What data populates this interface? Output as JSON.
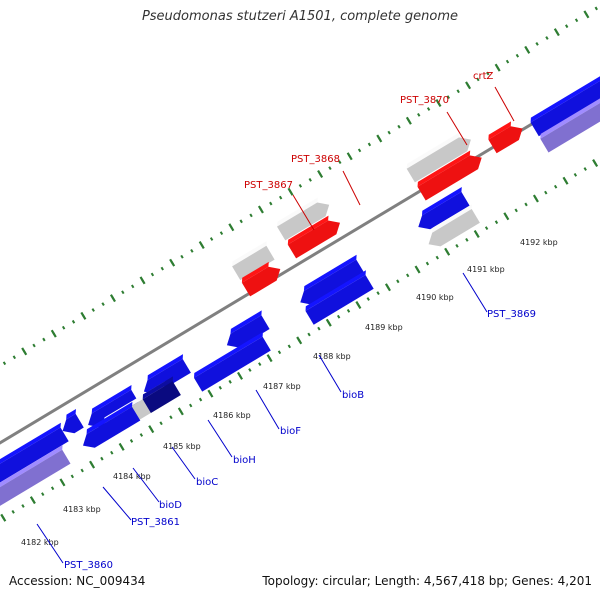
{
  "title": "Pseudomonas stutzeri A1501, complete genome",
  "accession_label": "Accession: NC_009434",
  "summary_label": "Topology: circular; Length: 4,567,418 bp; Genes: 4,201",
  "colors": {
    "backbone": "#808080",
    "tick": "#2e7d32",
    "forward_other": "#c8c8c8",
    "forward_highlight": "#ee1111",
    "reverse": "#1010dd",
    "reverse_pseudo": "#8070d0",
    "reverse_gray": "#c8c8c8",
    "reverse_dark": "#0a0a80",
    "label_forward": "#cc0000",
    "label_reverse": "#0000cc"
  },
  "kbp_labels": [
    "4182 kbp",
    "4183 kbp",
    "4184 kbp",
    "4185 kbp",
    "4186 kbp",
    "4187 kbp",
    "4188 kbp",
    "4189 kbp",
    "4190 kbp",
    "4191 kbp",
    "4192 kbp"
  ],
  "gene_labels": {
    "forward": [
      "crtZ",
      "PST_3870",
      "PST_3868",
      "PST_3867"
    ],
    "reverse": [
      "PST_3869",
      "bioB",
      "bioF",
      "bioH",
      "bioC",
      "bioD",
      "PST_3861",
      "PST_3860"
    ]
  }
}
